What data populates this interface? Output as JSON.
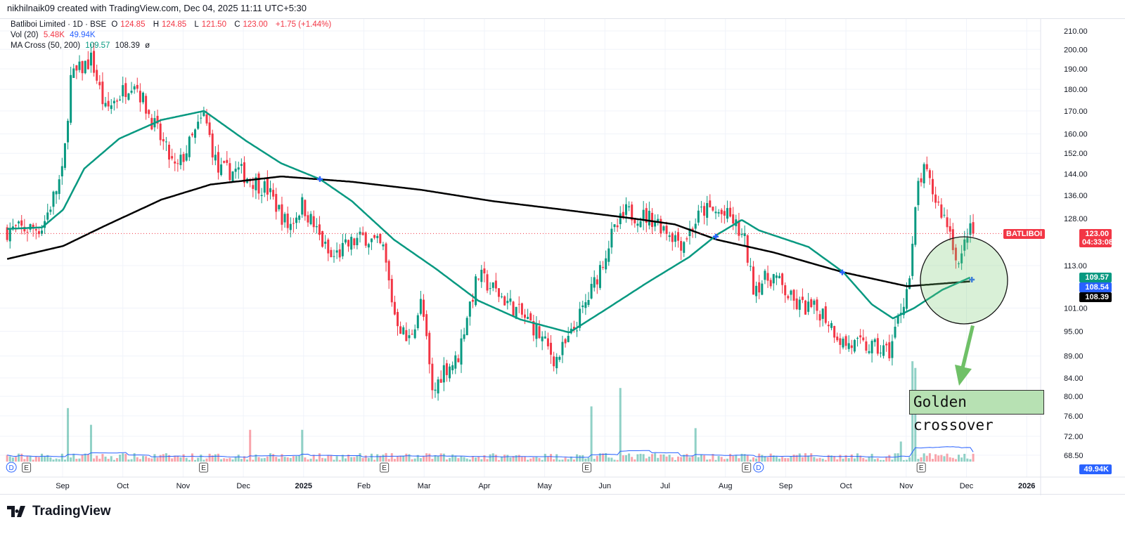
{
  "credit": "nikhilnaik09 created with TradingView.com, Dec 04, 2025 11:11 UTC+5:30",
  "legend": {
    "symbol": "Batliboi Limited · 1D · BSE",
    "o_label": "O",
    "o": "124.85",
    "h_label": "H",
    "h": "124.85",
    "l_label": "L",
    "l": "121.50",
    "c_label": "C",
    "c": "123.00",
    "change": "+1.75 (+1.44%)",
    "vol_label": "Vol (20)",
    "vol": "5.48K",
    "vol_ma": "49.94K",
    "ma_label": "MA Cross (50, 200)",
    "ma_fast": "109.57",
    "ma_slow": "108.39",
    "ma_extra": "ø"
  },
  "tags": {
    "symbol": "BATLIBOI",
    "price": "123.00",
    "countdown": "04:33:08",
    "ma_fast": "109.57",
    "mid": "108.54",
    "ma_slow": "108.39",
    "vol_ma": "49.94K"
  },
  "annotation": {
    "text": "Golden crossover"
  },
  "footer": {
    "brand": "TradingView"
  },
  "colors": {
    "up": "#089981",
    "down": "#f23645",
    "ma_fast": "#089981",
    "ma_slow": "#000000",
    "accent": "#2962ff"
  },
  "chart_data": {
    "type": "candlestick",
    "title": "Batliboi Limited · 1D · BSE",
    "x_unit": "months since Sep 2024",
    "x_ticks": [
      {
        "t": 0,
        "label": "Sep"
      },
      {
        "t": 1,
        "label": "Oct"
      },
      {
        "t": 2,
        "label": "Nov"
      },
      {
        "t": 3,
        "label": "Dec"
      },
      {
        "t": 4,
        "label": "2025"
      },
      {
        "t": 5,
        "label": "Feb"
      },
      {
        "t": 6,
        "label": "Mar"
      },
      {
        "t": 7,
        "label": "Apr"
      },
      {
        "t": 8,
        "label": "May"
      },
      {
        "t": 9,
        "label": "Jun"
      },
      {
        "t": 10,
        "label": "Jul"
      },
      {
        "t": 11,
        "label": "Aug"
      },
      {
        "t": 12,
        "label": "Sep"
      },
      {
        "t": 13,
        "label": "Oct"
      },
      {
        "t": 14,
        "label": "Nov"
      },
      {
        "t": 15,
        "label": "Dec"
      },
      {
        "t": 16,
        "label": "2026"
      }
    ],
    "y_ticks": [
      "210.00",
      "200.00",
      "190.00",
      "180.00",
      "170.00",
      "160.00",
      "152.00",
      "144.00",
      "136.00",
      "128.00",
      "113.00",
      "101.00",
      "95.00",
      "89.00",
      "84.00",
      "80.00",
      "76.00",
      "72.00",
      "68.50"
    ],
    "y_scale": "log",
    "price_path": [
      [
        -0.92,
        124
      ],
      [
        -0.34,
        125
      ],
      [
        0.01,
        145
      ],
      [
        0.13,
        185
      ],
      [
        0.48,
        195
      ],
      [
        0.71,
        170
      ],
      [
        1.18,
        185
      ],
      [
        1.41,
        170
      ],
      [
        1.88,
        145
      ],
      [
        2.35,
        168
      ],
      [
        2.58,
        145
      ],
      [
        2.93,
        145
      ],
      [
        3.4,
        138
      ],
      [
        3.75,
        125
      ],
      [
        3.98,
        133
      ],
      [
        4.45,
        115
      ],
      [
        4.8,
        120
      ],
      [
        5.03,
        122
      ],
      [
        5.32,
        118
      ],
      [
        5.5,
        100
      ],
      [
        5.73,
        92
      ],
      [
        5.96,
        103
      ],
      [
        6.14,
        80
      ],
      [
        6.31,
        86
      ],
      [
        6.55,
        88
      ],
      [
        6.72,
        100
      ],
      [
        6.9,
        110
      ],
      [
        7.36,
        103
      ],
      [
        7.83,
        96
      ],
      [
        8.18,
        88
      ],
      [
        8.41,
        93
      ],
      [
        8.76,
        105
      ],
      [
        9.11,
        122
      ],
      [
        9.35,
        130
      ],
      [
        9.81,
        128
      ],
      [
        10.28,
        120
      ],
      [
        10.63,
        131
      ],
      [
        10.86,
        130
      ],
      [
        11.1,
        128
      ],
      [
        11.33,
        120
      ],
      [
        11.45,
        107
      ],
      [
        11.8,
        110
      ],
      [
        12.15,
        102
      ],
      [
        12.61,
        100
      ],
      [
        12.96,
        92
      ],
      [
        13.43,
        91
      ],
      [
        13.72,
        90
      ],
      [
        13.9,
        100
      ],
      [
        14.07,
        110
      ],
      [
        14.19,
        140
      ],
      [
        14.31,
        145
      ],
      [
        14.48,
        135
      ],
      [
        14.71,
        125
      ],
      [
        14.89,
        112
      ],
      [
        15.01,
        124
      ],
      [
        15.12,
        123
      ]
    ],
    "ma50": [
      [
        -0.92,
        124.5
      ],
      [
        -0.34,
        125
      ],
      [
        0.01,
        131
      ],
      [
        0.36,
        146
      ],
      [
        0.94,
        158
      ],
      [
        1.64,
        166
      ],
      [
        2.35,
        170
      ],
      [
        3.05,
        157
      ],
      [
        3.63,
        148
      ],
      [
        4.27,
        142
      ],
      [
        4.8,
        134
      ],
      [
        5.5,
        121
      ],
      [
        6.2,
        112
      ],
      [
        6.9,
        103
      ],
      [
        7.6,
        98
      ],
      [
        8.41,
        94.7
      ],
      [
        9.0,
        100.5
      ],
      [
        9.7,
        108
      ],
      [
        10.4,
        115.6
      ],
      [
        10.86,
        122.6
      ],
      [
        11.27,
        127.5
      ],
      [
        11.56,
        124
      ],
      [
        12.38,
        118.7
      ],
      [
        12.96,
        111
      ],
      [
        13.43,
        102
      ],
      [
        13.78,
        98.3
      ],
      [
        14.13,
        101
      ],
      [
        14.6,
        106
      ],
      [
        15.07,
        109.57
      ]
    ],
    "ma200": [
      [
        -0.92,
        115
      ],
      [
        0.01,
        119
      ],
      [
        0.71,
        125.6
      ],
      [
        1.64,
        134.5
      ],
      [
        2.46,
        140
      ],
      [
        3.63,
        143
      ],
      [
        4.8,
        141
      ],
      [
        5.96,
        138
      ],
      [
        7.13,
        134
      ],
      [
        8.3,
        131
      ],
      [
        9.46,
        128
      ],
      [
        10.16,
        126
      ],
      [
        10.86,
        121
      ],
      [
        11.8,
        117
      ],
      [
        12.96,
        111
      ],
      [
        14.02,
        107
      ],
      [
        15.07,
        108.39
      ]
    ],
    "cross_markers": [
      [
        4.27,
        142
      ],
      [
        10.84,
        122
      ],
      [
        12.94,
        111
      ],
      [
        15.09,
        108.9
      ]
    ],
    "volume": {
      "unit": "K",
      "baseline": 30,
      "ma_last": 49.94,
      "last": 5.48,
      "spikes": [
        [
          0.07,
          320
        ],
        [
          0.48,
          220
        ],
        [
          3.1,
          190
        ],
        [
          4.0,
          190
        ],
        [
          8.76,
          330
        ],
        [
          9.27,
          440
        ],
        [
          10.5,
          200
        ],
        [
          14.09,
          600
        ],
        [
          14.15,
          560
        ],
        [
          13.9,
          120
        ]
      ]
    },
    "events": [
      {
        "t": -0.6,
        "type": "E"
      },
      {
        "t": 2.34,
        "type": "E"
      },
      {
        "t": 5.34,
        "type": "E"
      },
      {
        "t": 8.7,
        "type": "E"
      },
      {
        "t": 11.35,
        "type": "E"
      },
      {
        "t": 14.25,
        "type": "E"
      },
      {
        "t": -0.85,
        "type": "D"
      },
      {
        "t": 11.55,
        "type": "D"
      }
    ]
  }
}
